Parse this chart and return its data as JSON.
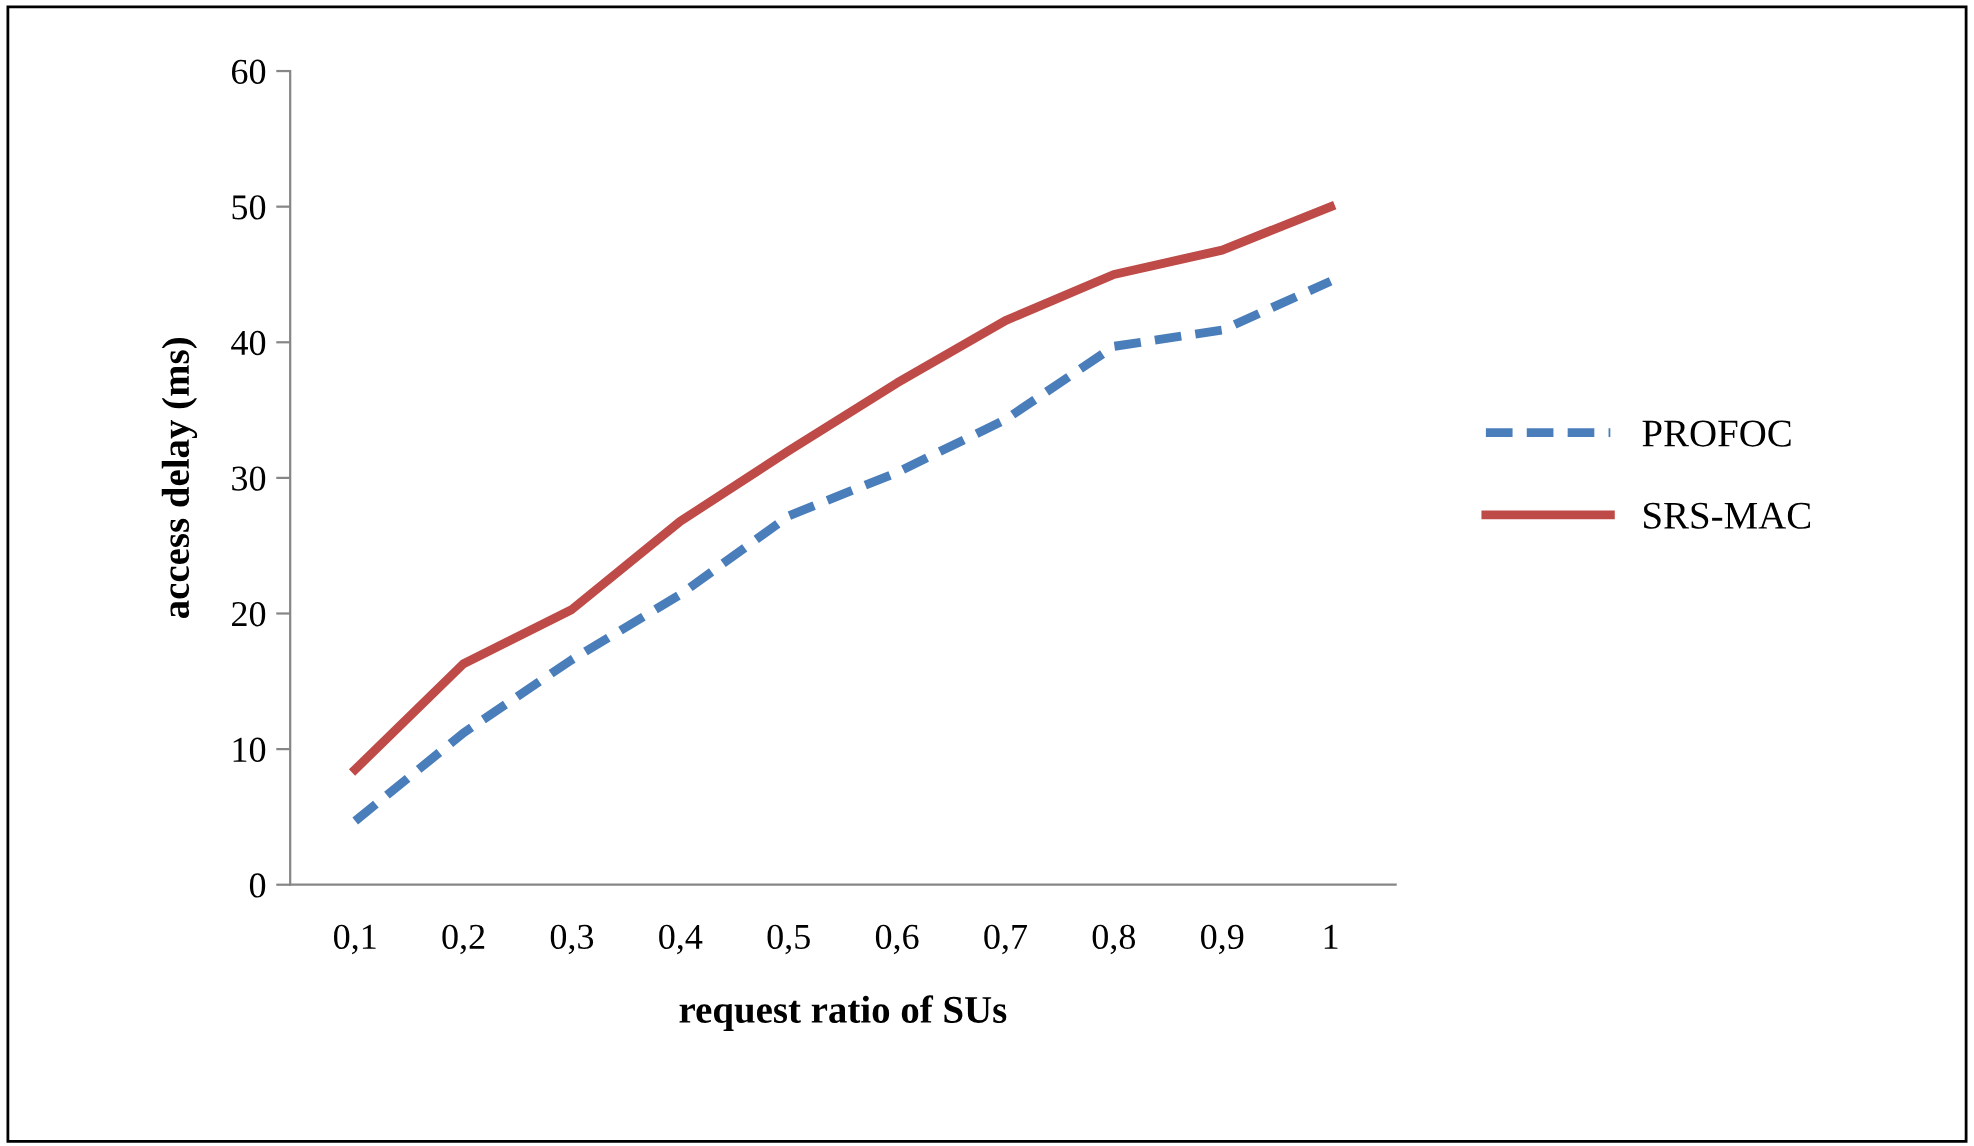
{
  "chart_data": {
    "type": "line",
    "xlabel": "request ratio of SUs",
    "ylabel": "access delay (ms)",
    "categories": [
      "0,1",
      "0,2",
      "0,3",
      "0,4",
      "0,5",
      "0,6",
      "0,7",
      "0,8",
      "0,9",
      "1"
    ],
    "series": [
      {
        "name": "PROFOC",
        "color": "#4a7ebb",
        "line_style": "dashed",
        "values": [
          4.7,
          11.2,
          16.6,
          21.4,
          27.2,
          30.4,
          34.3,
          39.7,
          40.9,
          44.5
        ]
      },
      {
        "name": "SRS-MAC",
        "color": "#be4b48",
        "line_style": "solid",
        "values": [
          8.5,
          16.3,
          20.3,
          26.8,
          32.0,
          37.0,
          41.6,
          45.0,
          46.8,
          50.0
        ]
      }
    ],
    "ylim": [
      0,
      60
    ],
    "yticks": [
      0,
      10,
      20,
      30,
      40,
      50,
      60
    ],
    "grid": false,
    "legend": "right",
    "marker": "none"
  }
}
